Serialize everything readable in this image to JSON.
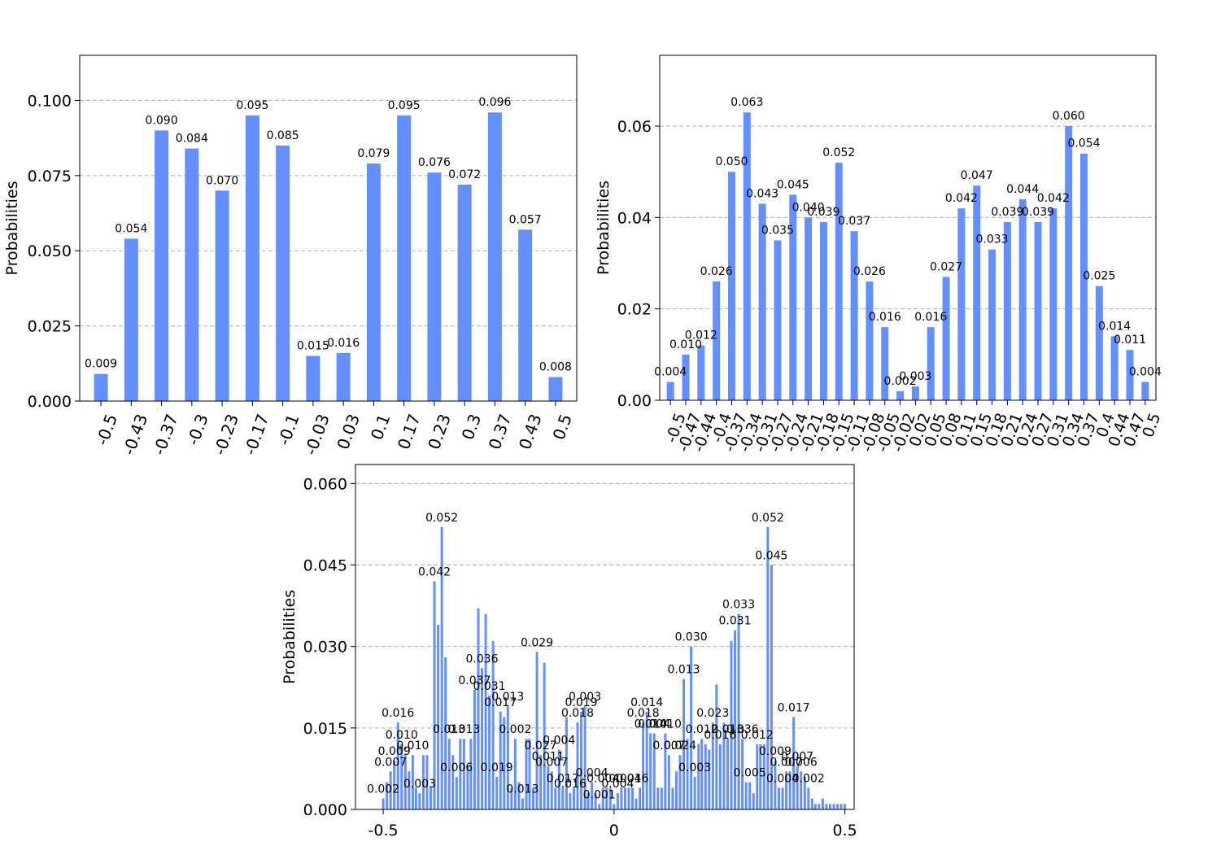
{
  "style": {
    "bar_color": "#648fff",
    "grid_color": "#b0b0b0",
    "axis_color": "#000000"
  },
  "chart_data": [
    {
      "type": "bar",
      "ylabel": "Probabilities",
      "ylim": [
        0,
        0.115
      ],
      "yticks": [
        0.0,
        0.025,
        0.05,
        0.075,
        0.1
      ],
      "ytick_labels": [
        "0.000",
        "0.025",
        "0.050",
        "0.075",
        "0.100"
      ],
      "grid": "horizontal, dashed",
      "categories": [
        "-0.5",
        "-0.43",
        "-0.37",
        "-0.3",
        "-0.23",
        "-0.17",
        "-0.1",
        "-0.03",
        "0.03",
        "0.1",
        "0.17",
        "0.23",
        "0.3",
        "0.37",
        "0.43",
        "0.5"
      ],
      "values": [
        0.009,
        0.054,
        0.09,
        0.084,
        0.07,
        0.095,
        0.085,
        0.015,
        0.016,
        0.079,
        0.095,
        0.076,
        0.072,
        0.096,
        0.057,
        0.008
      ],
      "value_labels": [
        "0.009",
        "0.054",
        "0.090",
        "0.084",
        "0.070",
        "0.095",
        "0.085",
        "0.015",
        "0.016",
        "0.079",
        "0.095",
        "0.076",
        "0.072",
        "0.096",
        "0.057",
        "0.008"
      ]
    },
    {
      "type": "bar",
      "ylabel": "Probabilities",
      "ylim": [
        0,
        0.0755
      ],
      "yticks": [
        0.0,
        0.02,
        0.04,
        0.06
      ],
      "ytick_labels": [
        "0.00",
        "0.02",
        "0.04",
        "0.06"
      ],
      "grid": "horizontal, dashed",
      "categories": [
        "-0.5",
        "-0.47",
        "-0.44",
        "-0.4",
        "-0.37",
        "-0.34",
        "-0.31",
        "-0.27",
        "-0.24",
        "-0.21",
        "-0.18",
        "-0.15",
        "-0.11",
        "-0.08",
        "-0.05",
        "-0.02",
        "0.02",
        "0.05",
        "0.08",
        "0.11",
        "0.15",
        "0.18",
        "0.21",
        "0.24",
        "0.27",
        "0.31",
        "0.34",
        "0.37",
        "0.4",
        "0.44",
        "0.47",
        "0.5"
      ],
      "values": [
        0.004,
        0.01,
        0.012,
        0.026,
        0.05,
        0.063,
        0.043,
        0.035,
        0.045,
        0.04,
        0.039,
        0.052,
        0.037,
        0.026,
        0.016,
        0.002,
        0.003,
        0.016,
        0.027,
        0.042,
        0.047,
        0.033,
        0.039,
        0.044,
        0.039,
        0.042,
        0.06,
        0.054,
        0.025,
        0.014,
        0.011,
        0.004
      ],
      "value_labels": [
        "0.004",
        "0.010",
        "0.012",
        "0.026",
        "0.050",
        "0.063",
        "0.043",
        "0.035",
        "0.045",
        "0.040",
        "0.039",
        "0.052",
        "0.037",
        "0.026",
        "0.016",
        "0.002",
        "0.003",
        "0.016",
        "0.027",
        "0.042",
        "0.047",
        "0.033",
        "0.039",
        "0.044",
        "0.039",
        "0.042",
        "0.060",
        "0.054",
        "0.025",
        "0.014",
        "0.011",
        "0.004"
      ]
    },
    {
      "type": "bar",
      "ylabel": "Probabilities",
      "ylim": [
        0,
        0.0635
      ],
      "xlim": [
        -0.56,
        0.52
      ],
      "yticks": [
        0.0,
        0.015,
        0.03,
        0.045,
        0.06
      ],
      "ytick_labels": [
        "0.000",
        "0.015",
        "0.030",
        "0.045",
        "0.060"
      ],
      "xticks": [
        -0.5,
        0,
        0.5
      ],
      "xtick_labels": [
        "-0.5",
        "0",
        "0.5"
      ],
      "grid": "horizontal, dashed",
      "x": [
        -0.5,
        -0.492,
        -0.484,
        -0.476,
        -0.468,
        -0.46,
        -0.452,
        -0.444,
        -0.436,
        -0.429,
        -0.421,
        -0.413,
        -0.405,
        -0.397,
        -0.389,
        -0.381,
        -0.373,
        -0.365,
        -0.357,
        -0.349,
        -0.341,
        -0.333,
        -0.325,
        -0.317,
        -0.31,
        -0.302,
        -0.294,
        -0.286,
        -0.278,
        -0.27,
        -0.262,
        -0.254,
        -0.246,
        -0.238,
        -0.23,
        -0.222,
        -0.214,
        -0.206,
        -0.198,
        -0.19,
        -0.183,
        -0.175,
        -0.167,
        -0.159,
        -0.151,
        -0.143,
        -0.135,
        -0.127,
        -0.119,
        -0.111,
        -0.103,
        -0.095,
        -0.087,
        -0.079,
        -0.071,
        -0.063,
        -0.056,
        -0.048,
        -0.04,
        -0.032,
        -0.024,
        -0.016,
        -0.008,
        0.0,
        0.008,
        0.016,
        0.024,
        0.032,
        0.04,
        0.048,
        0.056,
        0.063,
        0.071,
        0.079,
        0.087,
        0.095,
        0.103,
        0.111,
        0.119,
        0.127,
        0.135,
        0.143,
        0.151,
        0.159,
        0.167,
        0.175,
        0.183,
        0.19,
        0.198,
        0.206,
        0.214,
        0.222,
        0.23,
        0.238,
        0.246,
        0.254,
        0.262,
        0.27,
        0.278,
        0.286,
        0.294,
        0.302,
        0.31,
        0.317,
        0.325,
        0.333,
        0.341,
        0.349,
        0.357,
        0.365,
        0.373,
        0.381,
        0.389,
        0.397,
        0.405,
        0.413,
        0.421,
        0.429,
        0.436,
        0.444,
        0.452,
        0.46,
        0.468,
        0.476,
        0.484,
        0.492,
        0.5
      ],
      "values": [
        0.002,
        0.005,
        0.007,
        0.009,
        0.016,
        0.012,
        0.01,
        0.007,
        0.01,
        0.004,
        0.003,
        0.01,
        0.01,
        0.004,
        0.042,
        0.034,
        0.052,
        0.028,
        0.013,
        0.01,
        0.006,
        0.013,
        0.013,
        0.008,
        0.013,
        0.022,
        0.037,
        0.026,
        0.036,
        0.021,
        0.031,
        0.006,
        0.018,
        0.017,
        0.019,
        0.004,
        0.013,
        0.005,
        0.002,
        0.013,
        0.013,
        0.004,
        0.029,
        0.01,
        0.027,
        0.008,
        0.007,
        0.004,
        0.011,
        0.004,
        0.017,
        0.003,
        0.004,
        0.016,
        0.018,
        0.019,
        0.003,
        0.005,
        0.003,
        0.001,
        0.004,
        0.004,
        0.004,
        0.001,
        0.003,
        0.004,
        0.004,
        0.004,
        0.004,
        0.002,
        0.004,
        0.016,
        0.018,
        0.014,
        0.014,
        0.004,
        0.004,
        0.014,
        0.01,
        0.004,
        0.007,
        0.01,
        0.024,
        0.013,
        0.03,
        0.006,
        0.012,
        0.013,
        0.012,
        0.011,
        0.016,
        0.023,
        0.012,
        0.016,
        0.013,
        0.031,
        0.033,
        0.036,
        0.013,
        0.005,
        0.005,
        0.003,
        0.012,
        0.012,
        0.012,
        0.052,
        0.045,
        0.009,
        0.004,
        0.004,
        0.007,
        0.007,
        0.017,
        0.008,
        0.007,
        0.006,
        0.004,
        0.002,
        0.001,
        0.001,
        0.002,
        0.001,
        0.001,
        0.001,
        0.001,
        0.001,
        0.001
      ],
      "value_labels": [
        {
          "x": -0.5,
          "label": "0.002"
        },
        {
          "x": -0.484,
          "label": "0.007"
        },
        {
          "x": -0.476,
          "label": "0.009"
        },
        {
          "x": -0.468,
          "label": "0.016"
        },
        {
          "x": -0.46,
          "label": "0.010"
        },
        {
          "x": -0.436,
          "label": "0.010"
        },
        {
          "x": -0.421,
          "label": "0.003"
        },
        {
          "x": -0.389,
          "label": "0.042"
        },
        {
          "x": -0.373,
          "label": "0.052"
        },
        {
          "x": -0.357,
          "label": "0.013"
        },
        {
          "x": -0.341,
          "label": "0.006"
        },
        {
          "x": -0.325,
          "label": "0.013"
        },
        {
          "x": -0.302,
          "label": "0.037"
        },
        {
          "x": -0.286,
          "label": "0.036"
        },
        {
          "x": -0.27,
          "label": "0.031"
        },
        {
          "x": -0.254,
          "label": "0.019"
        },
        {
          "x": -0.246,
          "label": "0.017"
        },
        {
          "x": -0.23,
          "label": "0.013"
        },
        {
          "x": -0.214,
          "label": "0.002"
        },
        {
          "x": -0.198,
          "label": "0.013"
        },
        {
          "x": -0.167,
          "label": "0.029"
        },
        {
          "x": -0.159,
          "label": "0.027"
        },
        {
          "x": -0.143,
          "label": "0.011"
        },
        {
          "x": -0.135,
          "label": "0.007"
        },
        {
          "x": -0.119,
          "label": "0.004"
        },
        {
          "x": -0.111,
          "label": "0.017"
        },
        {
          "x": -0.095,
          "label": "0.016"
        },
        {
          "x": -0.079,
          "label": "0.018"
        },
        {
          "x": -0.071,
          "label": "0.019"
        },
        {
          "x": -0.063,
          "label": "0.003"
        },
        {
          "x": -0.048,
          "label": "0.004"
        },
        {
          "x": -0.032,
          "label": "0.001"
        },
        {
          "x": -0.024,
          "label": "0.004"
        },
        {
          "x": 0.008,
          "label": "0.004"
        },
        {
          "x": 0.024,
          "label": "0.004"
        },
        {
          "x": 0.04,
          "label": "0.016"
        },
        {
          "x": 0.063,
          "label": "0.018"
        },
        {
          "x": 0.071,
          "label": "0.014"
        },
        {
          "x": 0.079,
          "label": "0.014"
        },
        {
          "x": 0.087,
          "label": "0.004"
        },
        {
          "x": 0.111,
          "label": "0.010"
        },
        {
          "x": 0.119,
          "label": "0.007"
        },
        {
          "x": 0.143,
          "label": "0.024"
        },
        {
          "x": 0.151,
          "label": "0.013"
        },
        {
          "x": 0.167,
          "label": "0.030"
        },
        {
          "x": 0.175,
          "label": "0.003"
        },
        {
          "x": 0.19,
          "label": "0.012"
        },
        {
          "x": 0.214,
          "label": "0.023"
        },
        {
          "x": 0.23,
          "label": "0.016"
        },
        {
          "x": 0.246,
          "label": "0.013"
        },
        {
          "x": 0.262,
          "label": "0.031"
        },
        {
          "x": 0.27,
          "label": "0.033"
        },
        {
          "x": 0.278,
          "label": "0.036"
        },
        {
          "x": 0.294,
          "label": "0.005"
        },
        {
          "x": 0.31,
          "label": "0.012"
        },
        {
          "x": 0.333,
          "label": "0.052"
        },
        {
          "x": 0.341,
          "label": "0.045"
        },
        {
          "x": 0.349,
          "label": "0.009"
        },
        {
          "x": 0.365,
          "label": "0.004"
        },
        {
          "x": 0.373,
          "label": "0.007"
        },
        {
          "x": 0.389,
          "label": "0.017"
        },
        {
          "x": 0.397,
          "label": "0.007"
        },
        {
          "x": 0.405,
          "label": "0.006"
        },
        {
          "x": 0.421,
          "label": "0.002"
        }
      ]
    }
  ]
}
